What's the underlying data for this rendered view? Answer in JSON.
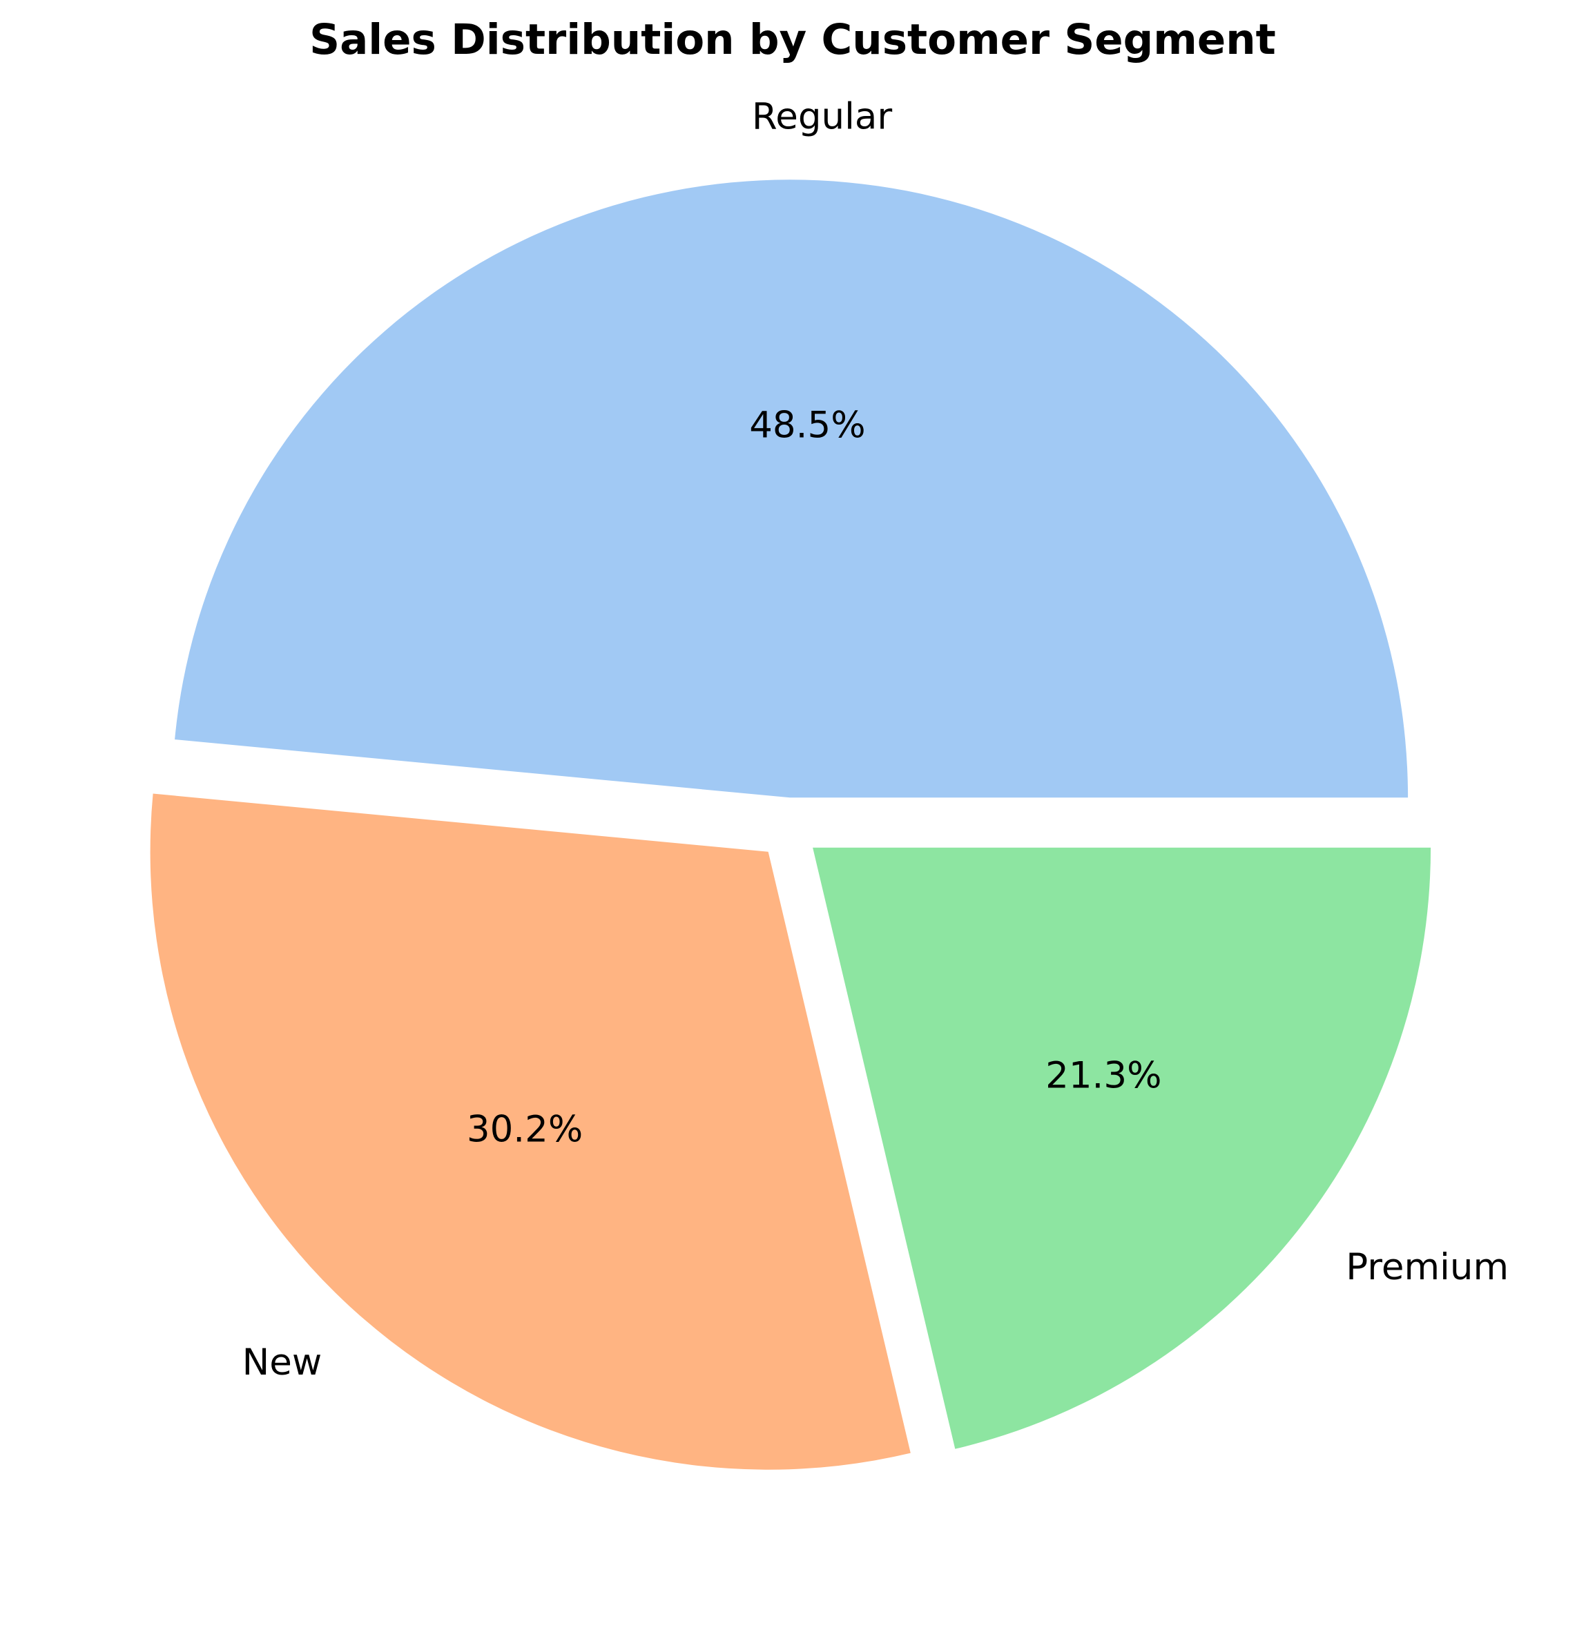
{
  "chart_data": {
    "type": "pie",
    "title": "Sales Distribution by Customer Segment",
    "categories": [
      "Regular",
      "New",
      "Premium"
    ],
    "values": [
      48.5,
      30.2,
      21.3
    ],
    "value_labels": [
      "48.5%",
      "30.2%",
      "21.3%"
    ],
    "colors": [
      "#a1c9f4",
      "#ffb482",
      "#8de5a1"
    ],
    "start_angle_deg": 0,
    "direction": "counterclockwise",
    "exploded": true,
    "legend": "none"
  }
}
